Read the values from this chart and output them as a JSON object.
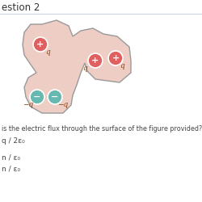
{
  "title": "estion 2",
  "body_color": "#eecdc4",
  "body_edge_color": "#999999",
  "plus_color": "#e06060",
  "minus_color": "#66b8b0",
  "plus_symbol": "+",
  "minus_symbol": "−",
  "charge_labels_plus": [
    "q",
    "q",
    "q"
  ],
  "charge_labels_minus": [
    "−q",
    "−q"
  ],
  "question_text": "is the electric flux through the surface of the figure provided?",
  "answer1": "q / 2ε₀",
  "answer2": "n / ε₀",
  "answer3": "n / ε₀",
  "bg_color": "#ffffff",
  "text_color": "#444444",
  "title_color": "#333333",
  "title_line_color": "#c8d8e8"
}
